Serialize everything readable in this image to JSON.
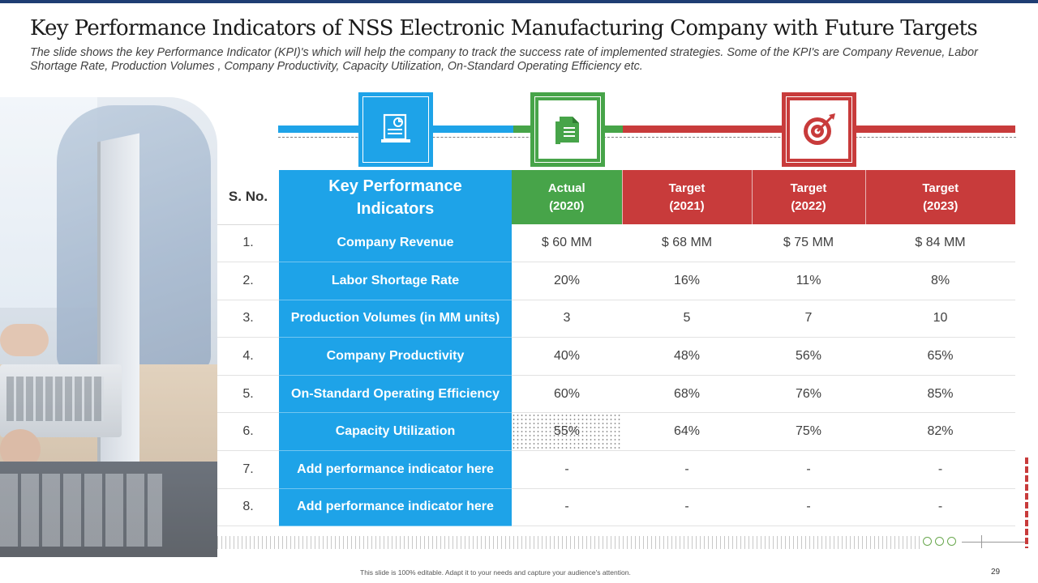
{
  "slide": {
    "title": "Key Performance Indicators of NSS Electronic Manufacturing Company with Future Targets",
    "subtitle": "The slide shows the key Performance Indicator (KPI)'s which will help the company to track the success rate of implemented strategies. Some of the KPI's are Company Revenue, Labor Shortage Rate, Production Volumes , Company Productivity, Capacity Utilization, On-Standard Operating Efficiency etc.",
    "footer_note": "This slide is 100% editable. Adapt it to your needs and capture your audience's attention.",
    "page_number": "29"
  },
  "icons": {
    "actual_icon": "report-document-icon",
    "green_icon": "file-document-icon",
    "target_icon": "target-dart-icon",
    "colors": {
      "blue": "#1ea3e8",
      "green": "#47a449",
      "red": "#c83b3b"
    }
  },
  "table": {
    "headers": {
      "sno": "S. No.",
      "kpi_line1": "Key Performance",
      "kpi_line2": "Indicators",
      "actual_line1": "Actual",
      "actual_line2": "(2020)",
      "t2021_line1": "Target",
      "t2021_line2": "(2021)",
      "t2022_line1": "Target",
      "t2022_line2": "(2022)",
      "t2023_line1": "Target",
      "t2023_line2": "(2023)"
    },
    "rows": [
      {
        "sno": "1.",
        "kpi": "Company Revenue",
        "actual": "$ 60 MM",
        "t2021": "$ 68 MM",
        "t2022": "$ 75 MM",
        "t2023": "$ 84 MM"
      },
      {
        "sno": "2.",
        "kpi": "Labor Shortage Rate",
        "actual": "20%",
        "t2021": "16%",
        "t2022": "11%",
        "t2023": "8%"
      },
      {
        "sno": "3.",
        "kpi": "Production Volumes (in MM units)",
        "actual": "3",
        "t2021": "5",
        "t2022": "7",
        "t2023": "10"
      },
      {
        "sno": "4.",
        "kpi": "Company Productivity",
        "actual": "40%",
        "t2021": "48%",
        "t2022": "56%",
        "t2023": "65%"
      },
      {
        "sno": "5.",
        "kpi": "On-Standard Operating Efficiency",
        "actual": "60%",
        "t2021": "68%",
        "t2022": "76%",
        "t2023": "85%"
      },
      {
        "sno": "6.",
        "kpi": "Capacity Utilization",
        "actual": "55%",
        "t2021": "64%",
        "t2022": "75%",
        "t2023": "82%"
      },
      {
        "sno": "7.",
        "kpi": "Add performance indicator here",
        "actual": "-",
        "t2021": "-",
        "t2022": "-",
        "t2023": "-"
      },
      {
        "sno": "8.",
        "kpi": "Add performance indicator here",
        "actual": "-",
        "t2021": "-",
        "t2022": "-",
        "t2023": "-"
      }
    ]
  }
}
